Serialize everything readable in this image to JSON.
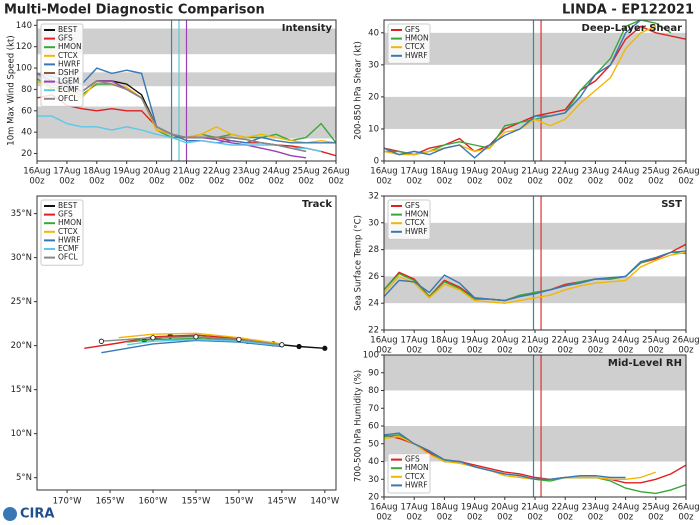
{
  "title": "Multi-Model Diagnostic Comparison",
  "storm": "LINDA - EP122021",
  "logo": "CIRA",
  "chart_data": [
    {
      "type": "line",
      "title": "Intensity",
      "ylabel": "10m Max Wind Speed (kt)",
      "legend": "upper left",
      "categories": [
        "16Aug",
        null,
        "17Aug",
        null,
        "18Aug",
        null,
        "19Aug",
        null,
        "20Aug",
        null,
        "21Aug",
        null,
        "22Aug",
        null,
        "23Aug",
        null,
        "24Aug",
        null,
        "25Aug",
        null,
        "26Aug"
      ],
      "time_label": "00z",
      "ylim": [
        13,
        145
      ],
      "yticks": [
        20,
        40,
        60,
        80,
        100,
        120,
        140
      ],
      "bands": [
        [
          34,
          64
        ],
        [
          83,
          96
        ],
        [
          113,
          137
        ]
      ],
      "vlines": [
        {
          "at": 9,
          "color": "#2f8f9f"
        },
        {
          "at": 9.5,
          "color": "#5bc8d8"
        },
        {
          "at": 10,
          "color": "#9b3fb5"
        }
      ],
      "series": [
        {
          "name": "BEST",
          "color": "#111111",
          "values": [
            95,
            88,
            85,
            78,
            88,
            88,
            85,
            75,
            45,
            38,
            35,
            null,
            null,
            null,
            null,
            null,
            null,
            null,
            null,
            null,
            null
          ]
        },
        {
          "name": "GFS",
          "color": "#e02020",
          "values": [
            72,
            75,
            65,
            62,
            60,
            62,
            60,
            60,
            45,
            38,
            35,
            35,
            35,
            32,
            30,
            30,
            28,
            27,
            25,
            22,
            18
          ]
        },
        {
          "name": "HMON",
          "color": "#3aa63a",
          "values": [
            90,
            82,
            80,
            75,
            85,
            85,
            80,
            72,
            42,
            35,
            35,
            38,
            35,
            38,
            35,
            35,
            38,
            32,
            35,
            48,
            30
          ]
        },
        {
          "name": "CTCX",
          "color": "#f2b705",
          "values": [
            88,
            80,
            78,
            72,
            88,
            85,
            82,
            72,
            42,
            38,
            35,
            38,
            45,
            38,
            35,
            38,
            35,
            32,
            30,
            32,
            30
          ]
        },
        {
          "name": "HWRF",
          "color": "#3a78b5",
          "values": [
            95,
            92,
            88,
            85,
            100,
            95,
            98,
            95,
            45,
            38,
            32,
            32,
            30,
            32,
            30,
            35,
            32,
            30,
            30,
            30,
            30
          ]
        },
        {
          "name": "DSHP",
          "color": "#8b5a3c",
          "values": [
            95,
            88,
            82,
            78,
            88,
            88,
            80,
            72,
            45,
            38,
            35,
            35,
            35,
            35,
            33,
            30,
            28,
            25,
            22,
            null,
            null
          ]
        },
        {
          "name": "LGEM",
          "color": "#9b3fb5",
          "values": [
            95,
            88,
            82,
            78,
            88,
            88,
            80,
            72,
            45,
            38,
            35,
            35,
            33,
            30,
            28,
            25,
            22,
            18,
            16,
            null,
            null
          ]
        },
        {
          "name": "ECMF",
          "color": "#5bc8e8",
          "values": [
            55,
            55,
            48,
            45,
            45,
            42,
            45,
            42,
            38,
            35,
            30,
            32,
            30,
            28,
            28,
            28,
            28,
            25,
            25,
            22,
            null
          ]
        },
        {
          "name": "OFCL",
          "color": "#888888",
          "values": [
            95,
            85,
            80,
            78,
            88,
            85,
            80,
            72,
            45,
            38,
            35,
            35,
            35,
            35,
            33,
            30,
            28,
            25,
            22,
            null,
            null
          ]
        }
      ]
    },
    {
      "type": "line",
      "title": "Deep-Layer Shear",
      "ylabel": "200-850 hPa Shear (kt)",
      "legend": "upper left",
      "categories": [
        "16Aug",
        null,
        "17Aug",
        null,
        "18Aug",
        null,
        "19Aug",
        null,
        "20Aug",
        null,
        "21Aug",
        null,
        "22Aug",
        null,
        "23Aug",
        null,
        "24Aug",
        null,
        "25Aug",
        null,
        "26Aug"
      ],
      "time_label": "00z",
      "ylim": [
        0,
        44
      ],
      "yticks": [
        0,
        10,
        20,
        30,
        40
      ],
      "bands": [
        [
          10,
          20
        ],
        [
          30,
          40
        ]
      ],
      "vlines": [
        {
          "at": 9.9,
          "color": "#2f8f8f"
        },
        {
          "at": 10.4,
          "color": "#e03030"
        }
      ],
      "series": [
        {
          "name": "GFS",
          "color": "#e02020",
          "values": [
            4,
            3,
            2,
            4,
            5,
            7,
            3,
            5,
            10,
            12,
            14,
            15,
            16,
            22,
            25,
            30,
            38,
            42,
            40,
            39,
            38
          ]
        },
        {
          "name": "HMON",
          "color": "#3aa63a",
          "values": [
            3,
            3,
            2,
            3,
            5,
            6,
            5,
            4,
            11,
            12,
            13,
            14,
            15,
            22,
            27,
            32,
            42,
            44,
            43,
            40,
            null
          ]
        },
        {
          "name": "CTCX",
          "color": "#f2b705",
          "values": [
            3,
            2,
            2,
            3,
            4,
            5,
            3,
            4,
            9,
            10,
            13,
            11,
            13,
            18,
            22,
            26,
            35,
            40,
            42,
            null,
            null
          ]
        },
        {
          "name": "HWRF",
          "color": "#3a78b5",
          "values": [
            4,
            2,
            3,
            2,
            4,
            5,
            1,
            5,
            8,
            10,
            14,
            14,
            15,
            20,
            27,
            30,
            40,
            44,
            null,
            null,
            null
          ]
        }
      ]
    },
    {
      "type": "track",
      "title": "Track",
      "legend": "upper left",
      "xlim": [
        -173.5,
        -138.7
      ],
      "ylim": [
        3.6,
        37
      ],
      "xticks": [
        {
          "value": -170,
          "label": "170°W"
        },
        {
          "value": -165,
          "label": "165°W"
        },
        {
          "value": -160,
          "label": "160°W"
        },
        {
          "value": -155,
          "label": "155°W"
        },
        {
          "value": -150,
          "label": "150°W"
        },
        {
          "value": -145,
          "label": "145°W"
        },
        {
          "value": -140,
          "label": "140°W"
        }
      ],
      "yticks": [
        {
          "value": 5,
          "label": "5°N"
        },
        {
          "value": 10,
          "label": "10°N"
        },
        {
          "value": 15,
          "label": "15°N"
        },
        {
          "value": 20,
          "label": "20°N"
        },
        {
          "value": 25,
          "label": "25°N"
        },
        {
          "value": 30,
          "label": "30°N"
        },
        {
          "value": 35,
          "label": "35°N"
        }
      ],
      "series": [
        {
          "name": "BEST",
          "color": "#111111",
          "marker": "filled",
          "x": [
            -140,
            -143,
            -146,
            -149,
            -152,
            -155,
            -158,
            -161
          ],
          "values": [
            19.7,
            19.9,
            20.2,
            20.5,
            20.8,
            21.0,
            21.1,
            20.6
          ]
        },
        {
          "name": "GFS",
          "color": "#e02020",
          "x": [
            -145,
            -150,
            -155,
            -160,
            -164,
            -168
          ],
          "values": [
            20.0,
            20.8,
            21.2,
            21.0,
            20.3,
            19.7
          ]
        },
        {
          "name": "HMON",
          "color": "#3aa63a",
          "x": [
            -145,
            -150,
            -155,
            -160,
            -163
          ],
          "values": [
            20.1,
            20.6,
            20.8,
            20.7,
            20.4
          ]
        },
        {
          "name": "CTCX",
          "color": "#f2b705",
          "x": [
            -145,
            -150,
            -155,
            -160,
            -164
          ],
          "values": [
            20.2,
            20.9,
            21.4,
            21.3,
            20.9
          ]
        },
        {
          "name": "HWRF",
          "color": "#3a78b5",
          "x": [
            -145,
            -150,
            -155,
            -160,
            -166
          ],
          "values": [
            19.9,
            20.4,
            20.6,
            20.2,
            19.2
          ]
        },
        {
          "name": "ECMF",
          "color": "#5bc8e8",
          "x": [
            -145,
            -150,
            -155,
            -160,
            -163
          ],
          "values": [
            20.0,
            20.5,
            20.7,
            20.5,
            20.1
          ]
        },
        {
          "name": "OFCL",
          "color": "#888888",
          "marker": "open",
          "x": [
            -145,
            -150,
            -155,
            -160,
            -166
          ],
          "values": [
            20.1,
            20.7,
            21.0,
            20.9,
            20.5
          ]
        }
      ]
    },
    {
      "type": "line",
      "title": "SST",
      "ylabel": "Sea Surface Temp (°C)",
      "legend": "upper left",
      "categories": [
        "16Aug",
        null,
        "17Aug",
        null,
        "18Aug",
        null,
        "19Aug",
        null,
        "20Aug",
        null,
        "21Aug",
        null,
        "22Aug",
        null,
        "23Aug",
        null,
        "24Aug",
        null,
        "25Aug",
        null,
        "26Aug"
      ],
      "time_label": "00z",
      "ylim": [
        22,
        32
      ],
      "yticks": [
        22,
        24,
        26,
        28,
        30,
        32
      ],
      "bands": [
        [
          24,
          26
        ],
        [
          28,
          30
        ]
      ],
      "vlines": [
        {
          "at": 9.9,
          "color": "#2f8f8f"
        },
        {
          "at": 10.4,
          "color": "#e03030"
        }
      ],
      "series": [
        {
          "name": "GFS",
          "color": "#e02020",
          "values": [
            25,
            26.3,
            25.8,
            24.5,
            25.7,
            25.2,
            24.4,
            24.3,
            24.2,
            24.5,
            24.8,
            25,
            25.4,
            25.6,
            25.8,
            25.8,
            26,
            27,
            27.3,
            27.8,
            28.4
          ]
        },
        {
          "name": "HMON",
          "color": "#3aa63a",
          "values": [
            25,
            26.2,
            25.7,
            24.5,
            25.6,
            25.1,
            24.3,
            24.3,
            24.2,
            24.6,
            24.8,
            25,
            25.3,
            25.6,
            25.8,
            25.8,
            26,
            27,
            27.4,
            27.8,
            27.7
          ]
        },
        {
          "name": "CTCX",
          "color": "#f2b705",
          "values": [
            24.8,
            26,
            25.5,
            24.4,
            25.4,
            25,
            24.2,
            24.1,
            24.0,
            24.2,
            24.4,
            24.6,
            25,
            25.3,
            25.5,
            25.6,
            25.7,
            26.7,
            27.2,
            27.6,
            27.8
          ]
        },
        {
          "name": "HWRF",
          "color": "#3a78b5",
          "values": [
            24.5,
            25.7,
            25.6,
            24.8,
            26.1,
            25.5,
            24.4,
            24.3,
            24.2,
            24.5,
            24.7,
            25,
            25.3,
            25.5,
            25.8,
            25.9,
            26,
            27.1,
            27.4,
            27.8,
            27.9
          ]
        }
      ]
    },
    {
      "type": "line",
      "title": "Mid-Level RH",
      "ylabel": "700-500 hPa Humidity (%)",
      "legend": "lower left",
      "categories": [
        "16Aug",
        null,
        "17Aug",
        null,
        "18Aug",
        null,
        "19Aug",
        null,
        "20Aug",
        null,
        "21Aug",
        null,
        "22Aug",
        null,
        "23Aug",
        null,
        "24Aug",
        null,
        "25Aug",
        null,
        "26Aug"
      ],
      "time_label": "00z",
      "ylim": [
        20,
        100
      ],
      "yticks": [
        20,
        30,
        40,
        50,
        60,
        70,
        80,
        90,
        100
      ],
      "bands": [
        [
          40,
          60
        ],
        [
          80,
          100
        ]
      ],
      "vlines": [
        {
          "at": 9.9,
          "color": "#2f8f8f"
        },
        {
          "at": 10.4,
          "color": "#e03030"
        }
      ],
      "series": [
        {
          "name": "GFS",
          "color": "#e02020",
          "values": [
            55,
            53,
            50,
            45,
            40,
            40,
            38,
            36,
            34,
            33,
            31,
            30,
            31,
            31,
            31,
            30,
            28,
            28,
            30,
            33,
            38
          ]
        },
        {
          "name": "HMON",
          "color": "#3aa63a",
          "values": [
            54,
            55,
            50,
            46,
            40,
            40,
            37,
            35,
            33,
            32,
            30,
            29,
            31,
            31,
            31,
            29,
            25,
            23,
            22,
            24,
            27
          ]
        },
        {
          "name": "CTCX",
          "color": "#f2b705",
          "values": [
            53,
            54,
            50,
            44,
            40,
            39,
            37,
            35,
            32,
            31,
            30,
            30,
            31,
            31,
            31,
            30,
            30,
            31,
            34,
            null,
            null
          ]
        },
        {
          "name": "HWRF",
          "color": "#3a78b5",
          "values": [
            55,
            56,
            50,
            46,
            41,
            40,
            37,
            35,
            33,
            32,
            30,
            30,
            31,
            32,
            32,
            31,
            31,
            null,
            null,
            null,
            null
          ]
        }
      ]
    }
  ]
}
